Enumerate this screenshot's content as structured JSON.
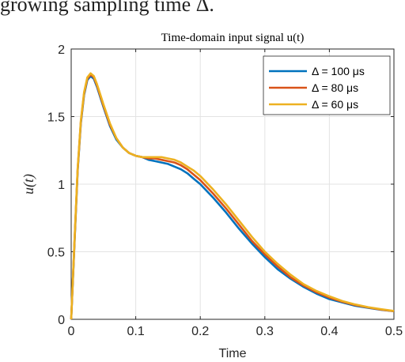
{
  "caption_fragment": "growing sampling time Δ.",
  "chart_data": {
    "type": "line",
    "title": "Time-domain input signal u(t)",
    "xlabel": "Time",
    "ylabel": "u(t)",
    "xlim": [
      0,
      0.5
    ],
    "ylim": [
      0,
      2
    ],
    "xticks": [
      "0",
      "0.1",
      "0.2",
      "0.3",
      "0.4",
      "0.5"
    ],
    "yticks": [
      "0",
      "0.5",
      "1",
      "1.5",
      "2"
    ],
    "grid": true,
    "legend_position": "top-right",
    "series": [
      {
        "name": "Δ = 100 μs",
        "color": "#0072BD",
        "x": [
          0,
          0.005,
          0.01,
          0.015,
          0.02,
          0.025,
          0.03,
          0.035,
          0.04,
          0.05,
          0.06,
          0.07,
          0.08,
          0.09,
          0.1,
          0.11,
          0.12,
          0.13,
          0.14,
          0.15,
          0.16,
          0.17,
          0.18,
          0.19,
          0.2,
          0.22,
          0.24,
          0.26,
          0.28,
          0.3,
          0.32,
          0.34,
          0.36,
          0.38,
          0.4,
          0.42,
          0.44,
          0.46,
          0.48,
          0.5
        ],
        "y": [
          0,
          0.55,
          1.1,
          1.45,
          1.66,
          1.77,
          1.8,
          1.78,
          1.72,
          1.57,
          1.43,
          1.33,
          1.27,
          1.23,
          1.21,
          1.2,
          1.18,
          1.17,
          1.16,
          1.15,
          1.13,
          1.11,
          1.08,
          1.04,
          1.0,
          0.9,
          0.79,
          0.67,
          0.56,
          0.46,
          0.37,
          0.3,
          0.24,
          0.19,
          0.15,
          0.125,
          0.1,
          0.085,
          0.07,
          0.06
        ]
      },
      {
        "name": "Δ = 80 μs",
        "color": "#D95319",
        "x": [
          0,
          0.005,
          0.01,
          0.015,
          0.02,
          0.025,
          0.03,
          0.035,
          0.04,
          0.05,
          0.06,
          0.07,
          0.08,
          0.09,
          0.1,
          0.11,
          0.12,
          0.13,
          0.14,
          0.15,
          0.16,
          0.17,
          0.18,
          0.19,
          0.2,
          0.22,
          0.24,
          0.26,
          0.28,
          0.3,
          0.32,
          0.34,
          0.36,
          0.38,
          0.4,
          0.42,
          0.44,
          0.46,
          0.48,
          0.5
        ],
        "y": [
          0,
          0.56,
          1.11,
          1.46,
          1.67,
          1.78,
          1.81,
          1.79,
          1.73,
          1.58,
          1.44,
          1.34,
          1.27,
          1.23,
          1.21,
          1.2,
          1.19,
          1.19,
          1.18,
          1.17,
          1.16,
          1.14,
          1.11,
          1.07,
          1.03,
          0.93,
          0.82,
          0.7,
          0.58,
          0.48,
          0.39,
          0.31,
          0.25,
          0.2,
          0.16,
          0.13,
          0.105,
          0.088,
          0.072,
          0.06
        ]
      },
      {
        "name": "Δ = 60 μs",
        "color": "#EDB120",
        "x": [
          0,
          0.005,
          0.01,
          0.015,
          0.02,
          0.025,
          0.03,
          0.035,
          0.04,
          0.05,
          0.06,
          0.07,
          0.08,
          0.09,
          0.1,
          0.11,
          0.12,
          0.13,
          0.14,
          0.15,
          0.16,
          0.17,
          0.18,
          0.19,
          0.2,
          0.22,
          0.24,
          0.26,
          0.28,
          0.3,
          0.32,
          0.34,
          0.36,
          0.38,
          0.4,
          0.42,
          0.44,
          0.46,
          0.48,
          0.5
        ],
        "y": [
          0,
          0.57,
          1.12,
          1.47,
          1.68,
          1.79,
          1.82,
          1.8,
          1.74,
          1.59,
          1.45,
          1.34,
          1.27,
          1.23,
          1.21,
          1.2,
          1.2,
          1.2,
          1.2,
          1.19,
          1.18,
          1.16,
          1.13,
          1.1,
          1.06,
          0.96,
          0.85,
          0.73,
          0.61,
          0.5,
          0.41,
          0.33,
          0.26,
          0.21,
          0.17,
          0.135,
          0.11,
          0.09,
          0.075,
          0.062
        ]
      }
    ]
  }
}
